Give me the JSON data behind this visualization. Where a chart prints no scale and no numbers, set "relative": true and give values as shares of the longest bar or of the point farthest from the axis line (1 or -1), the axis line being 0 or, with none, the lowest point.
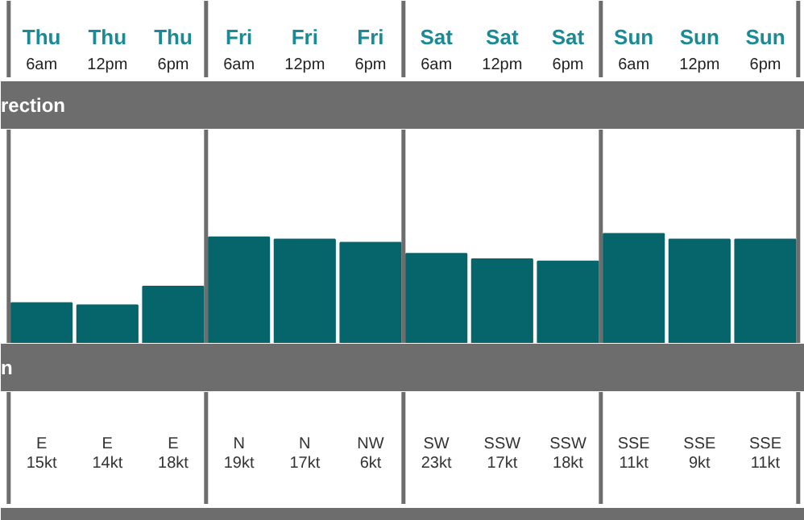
{
  "chart_data": [
    {
      "type": "bar",
      "title": "rection",
      "relative": true,
      "color": "#06656b",
      "categories": [
        "Thu\n6am",
        "Thu\n12pm",
        "Thu\n6pm",
        "Fri\n6am",
        "Fri\n12pm",
        "Fri\n6pm",
        "Sat\n6am",
        "Sat\n12pm",
        "Sat\n6pm",
        "Sun\n6am",
        "Sun\n12pm",
        "Sun\n6pm"
      ],
      "values": [
        0.37,
        0.35,
        0.52,
        0.97,
        0.95,
        0.92,
        0.82,
        0.77,
        0.75,
        1.0,
        0.95,
        0.95
      ]
    },
    {
      "type": "other",
      "title": "n",
      "annotations": [
        "E\n15kt",
        "E\n14kt",
        "E\n18kt",
        "N\n19kt",
        "N\n17kt",
        "NW\n6kt",
        "SW\n23kt",
        "SSW\n17kt",
        "SSW\n18kt",
        "SSE\n11kt",
        "SSE\n9kt",
        "SSE\n11kt"
      ]
    }
  ]
}
